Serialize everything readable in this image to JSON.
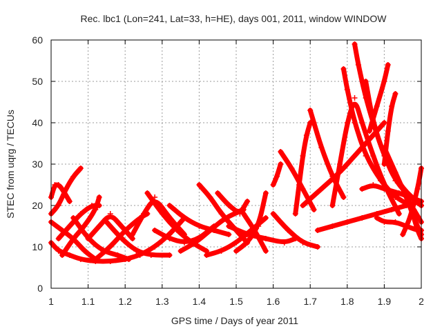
{
  "chart_data": {
    "type": "scatter",
    "title": "Rec. lbc1 (Lon=241, Lat=33, h=HE), days 001, 2011, window WINDOW",
    "xlabel": "GPS time / Days of year 2011",
    "ylabel": "STEC from uqrg / TECUs",
    "xlim": [
      1,
      2
    ],
    "ylim": [
      0,
      60
    ],
    "xticks": [
      "1",
      "1.1",
      "1.2",
      "1.3",
      "1.4",
      "1.5",
      "1.6",
      "1.7",
      "1.8",
      "1.9",
      "2"
    ],
    "yticks": [
      "0",
      "10",
      "20",
      "30",
      "40",
      "50",
      "60"
    ],
    "grid": true,
    "marker": "+",
    "color": "#ff0000",
    "series": [
      {
        "x": [
          1.0,
          1.02,
          1.05,
          1.08,
          1.12,
          1.16,
          1.2
        ],
        "values": [
          11,
          9,
          8,
          7,
          6.5,
          6.5,
          7
        ]
      },
      {
        "x": [
          1.0,
          1.03,
          1.06,
          1.09,
          1.12
        ],
        "values": [
          16,
          14,
          12,
          9,
          7
        ]
      },
      {
        "x": [
          1.0,
          1.01,
          1.02,
          1.03,
          1.05
        ],
        "values": [
          22,
          25,
          25,
          24,
          21
        ]
      },
      {
        "x": [
          1.0,
          1.02,
          1.04,
          1.06,
          1.08
        ],
        "values": [
          18,
          20,
          24,
          27,
          29
        ]
      },
      {
        "x": [
          1.02,
          1.05,
          1.08,
          1.11,
          1.13
        ],
        "values": [
          12,
          15,
          18,
          20,
          20
        ]
      },
      {
        "x": [
          1.03,
          1.06,
          1.09,
          1.12,
          1.13
        ],
        "values": [
          8,
          12,
          15,
          19,
          22
        ]
      },
      {
        "x": [
          1.06,
          1.1,
          1.14,
          1.18,
          1.21
        ],
        "values": [
          17,
          12,
          9,
          8,
          7
        ]
      },
      {
        "x": [
          1.1,
          1.13,
          1.16,
          1.19,
          1.22
        ],
        "values": [
          12,
          15,
          18,
          15,
          12
        ]
      },
      {
        "x": [
          1.12,
          1.16,
          1.2,
          1.24,
          1.26
        ],
        "values": [
          7,
          10,
          14,
          17,
          18
        ]
      },
      {
        "x": [
          1.15,
          1.19,
          1.23,
          1.27,
          1.32
        ],
        "values": [
          16,
          12,
          9,
          8,
          8
        ]
      },
      {
        "x": [
          1.2,
          1.24,
          1.28,
          1.32,
          1.36
        ],
        "values": [
          7,
          8,
          10,
          13,
          17
        ]
      },
      {
        "x": [
          1.22,
          1.25,
          1.28,
          1.32,
          1.36
        ],
        "values": [
          13,
          18,
          22,
          17,
          13
        ]
      },
      {
        "x": [
          1.26,
          1.3,
          1.34,
          1.38,
          1.42
        ],
        "values": [
          23,
          18,
          14,
          11,
          9
        ]
      },
      {
        "x": [
          1.28,
          1.32,
          1.36,
          1.4,
          1.44
        ],
        "values": [
          14,
          12,
          11,
          12,
          15
        ]
      },
      {
        "x": [
          1.32,
          1.36,
          1.4,
          1.44,
          1.48
        ],
        "values": [
          20,
          17,
          15,
          14,
          13
        ]
      },
      {
        "x": [
          1.35,
          1.39,
          1.43,
          1.47,
          1.52
        ],
        "values": [
          9,
          11,
          14,
          17,
          19
        ]
      },
      {
        "x": [
          1.4,
          1.43,
          1.46,
          1.5,
          1.53
        ],
        "values": [
          25,
          22,
          18,
          14,
          11
        ]
      },
      {
        "x": [
          1.42,
          1.46,
          1.5,
          1.54,
          1.58
        ],
        "values": [
          8,
          9,
          11,
          14,
          17
        ]
      },
      {
        "x": [
          1.45,
          1.48,
          1.51,
          1.53
        ],
        "values": [
          23,
          20,
          18,
          21
        ]
      },
      {
        "x": [
          1.5,
          1.53,
          1.56,
          1.58
        ],
        "values": [
          9,
          11,
          15,
          23
        ]
      },
      {
        "x": [
          1.48,
          1.53,
          1.58,
          1.63,
          1.66
        ],
        "values": [
          15,
          13,
          12,
          11,
          12
        ]
      },
      {
        "x": [
          1.52,
          1.55,
          1.58
        ],
        "values": [
          18,
          14,
          9
        ]
      },
      {
        "x": [
          1.6,
          1.64,
          1.68,
          1.72
        ],
        "values": [
          18,
          14,
          11,
          10
        ]
      },
      {
        "x": [
          1.6,
          1.61,
          1.62
        ],
        "values": [
          25,
          27,
          30
        ]
      },
      {
        "x": [
          1.62,
          1.65,
          1.68,
          1.71
        ],
        "values": [
          33,
          29,
          24,
          19
        ]
      },
      {
        "x": [
          1.66,
          1.67,
          1.68,
          1.69,
          1.7
        ],
        "values": [
          18,
          25,
          32,
          37,
          40
        ]
      },
      {
        "x": [
          1.7,
          1.71,
          1.73,
          1.76,
          1.79
        ],
        "values": [
          43,
          40,
          34,
          27,
          22
        ]
      },
      {
        "x": [
          1.68,
          1.73,
          1.78,
          1.82,
          1.86,
          1.9
        ],
        "values": [
          20,
          24,
          28,
          32,
          36,
          40
        ]
      },
      {
        "x": [
          1.72,
          1.76,
          1.8,
          1.84,
          1.88,
          1.92,
          1.96,
          2.0
        ],
        "values": [
          14,
          15,
          16,
          17,
          18,
          19,
          20,
          21
        ]
      },
      {
        "x": [
          1.76,
          1.78,
          1.8,
          1.82,
          1.84,
          1.87,
          1.9,
          1.94
        ],
        "values": [
          20,
          30,
          40,
          46,
          40,
          32,
          25,
          18
        ]
      },
      {
        "x": [
          1.79,
          1.8,
          1.82,
          1.85,
          1.89,
          1.93,
          1.97
        ],
        "values": [
          53,
          48,
          40,
          32,
          26,
          22,
          20
        ]
      },
      {
        "x": [
          1.82,
          1.83,
          1.85,
          1.88,
          1.91,
          1.95,
          2.0
        ],
        "values": [
          59,
          54,
          46,
          37,
          30,
          24,
          20
        ]
      },
      {
        "x": [
          1.85,
          1.87,
          1.9,
          1.93,
          1.97,
          2.0
        ],
        "values": [
          50,
          40,
          32,
          26,
          22,
          20
        ]
      },
      {
        "x": [
          1.86,
          1.88,
          1.9,
          1.91
        ],
        "values": [
          38,
          44,
          50,
          54
        ]
      },
      {
        "x": [
          1.9,
          1.91,
          1.92,
          1.93
        ],
        "values": [
          30,
          38,
          44,
          47
        ]
      },
      {
        "x": [
          1.84,
          1.87,
          1.9,
          1.94,
          1.97,
          2.0
        ],
        "values": [
          24,
          25,
          24,
          23,
          22,
          21
        ]
      },
      {
        "x": [
          1.88,
          1.9,
          1.93,
          1.96,
          1.99,
          2.0
        ],
        "values": [
          17,
          16,
          16,
          15,
          14,
          14
        ]
      },
      {
        "x": [
          1.9,
          1.93,
          1.96,
          1.98,
          2.0
        ],
        "values": [
          34,
          28,
          22,
          17,
          13
        ]
      },
      {
        "x": [
          1.95,
          1.97,
          1.99,
          2.0
        ],
        "values": [
          13,
          17,
          24,
          29
        ]
      },
      {
        "x": [
          1.96,
          1.98,
          2.0
        ],
        "values": [
          22,
          19,
          16
        ]
      },
      {
        "x": [
          1.97,
          1.99,
          2.0
        ],
        "values": [
          20,
          14,
          12
        ]
      }
    ]
  }
}
